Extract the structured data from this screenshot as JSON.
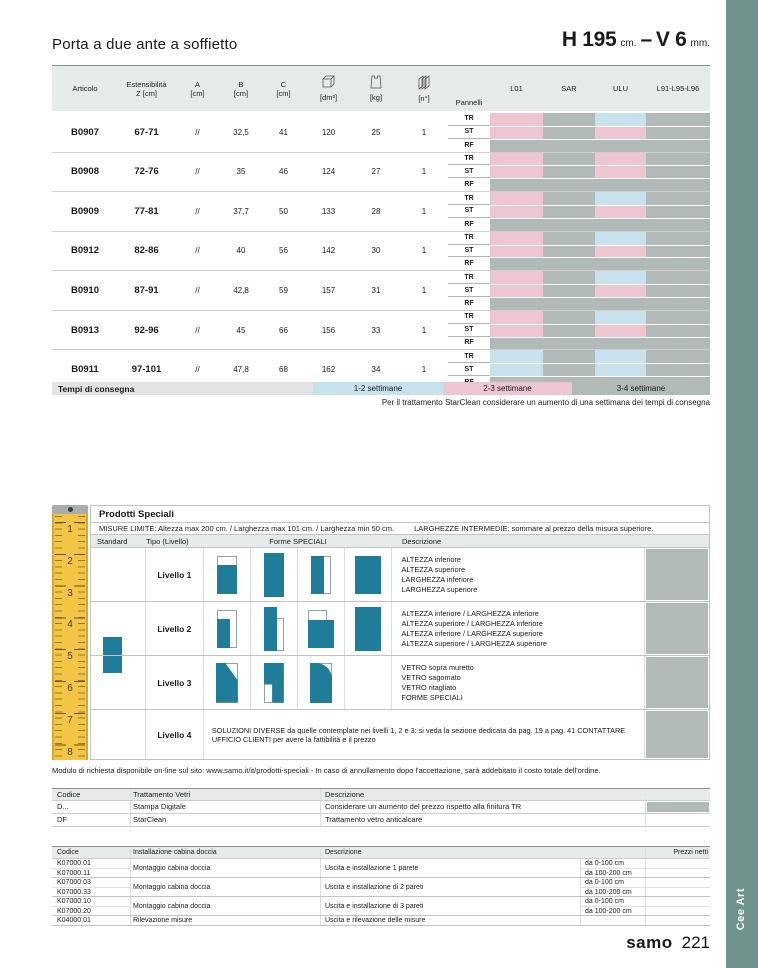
{
  "header": {
    "title": "Porta a due ante a soffietto",
    "spec": {
      "h": "H 195",
      "h_unit": "cm.",
      "dash": "–",
      "v": "V 6",
      "v_unit": "mm."
    }
  },
  "colors": {
    "pink": "#eec6d1",
    "blue": "#c7e2ec",
    "gray": "#b1b9b9",
    "teal": "#1f7d99",
    "accent_bar": "#6f928d"
  },
  "main_table": {
    "header": {
      "articolo": "Articolo",
      "estensibilita": [
        "Estensibilità",
        "Z [cm]"
      ],
      "a": [
        "A",
        "[cm]"
      ],
      "b": [
        "B",
        "[cm]"
      ],
      "c": [
        "C",
        "[cm]"
      ],
      "volume": "[dm³]",
      "weight": "[kg]",
      "count": "[n°]",
      "pannelli": "Pannelli",
      "panel_cols": [
        "L01",
        "SAR",
        "ULU",
        "L91-L95-L96"
      ]
    },
    "finishes": [
      "TR",
      "ST",
      "RF"
    ],
    "groups": [
      {
        "articolo": "B0907",
        "estensibilita": "67-71",
        "a": "//",
        "b": "32,5",
        "c": "41",
        "volume": "120",
        "weight": "25",
        "count": "1",
        "cells": {
          "TR": [
            "pink",
            "gray",
            "blue",
            "gray"
          ],
          "ST": [
            "pink",
            "gray",
            "pink",
            "gray"
          ],
          "RF": [
            "gray",
            "gray",
            "gray",
            "gray"
          ]
        }
      },
      {
        "articolo": "B0908",
        "estensibilita": "72-76",
        "a": "//",
        "b": "35",
        "c": "46",
        "volume": "124",
        "weight": "27",
        "count": "1",
        "cells": {
          "TR": [
            "pink",
            "gray",
            "pink",
            "gray"
          ],
          "ST": [
            "pink",
            "gray",
            "pink",
            "gray"
          ],
          "RF": [
            "gray",
            "gray",
            "gray",
            "gray"
          ]
        }
      },
      {
        "articolo": "B0909",
        "estensibilita": "77-81",
        "a": "//",
        "b": "37,7",
        "c": "50",
        "volume": "133",
        "weight": "28",
        "count": "1",
        "cells": {
          "TR": [
            "pink",
            "gray",
            "blue",
            "gray"
          ],
          "ST": [
            "pink",
            "gray",
            "pink",
            "gray"
          ],
          "RF": [
            "gray",
            "gray",
            "gray",
            "gray"
          ]
        }
      },
      {
        "articolo": "B0912",
        "estensibilita": "82-86",
        "a": "//",
        "b": "40",
        "c": "56",
        "volume": "142",
        "weight": "30",
        "count": "1",
        "cells": {
          "TR": [
            "pink",
            "gray",
            "blue",
            "gray"
          ],
          "ST": [
            "pink",
            "gray",
            "pink",
            "gray"
          ],
          "RF": [
            "gray",
            "gray",
            "gray",
            "gray"
          ]
        }
      },
      {
        "articolo": "B0910",
        "estensibilita": "87-91",
        "a": "//",
        "b": "42,8",
        "c": "59",
        "volume": "157",
        "weight": "31",
        "count": "1",
        "cells": {
          "TR": [
            "pink",
            "gray",
            "blue",
            "gray"
          ],
          "ST": [
            "pink",
            "gray",
            "pink",
            "gray"
          ],
          "RF": [
            "gray",
            "gray",
            "gray",
            "gray"
          ]
        }
      },
      {
        "articolo": "B0913",
        "estensibilita": "92-96",
        "a": "//",
        "b": "45",
        "c": "66",
        "volume": "156",
        "weight": "33",
        "count": "1",
        "cells": {
          "TR": [
            "pink",
            "gray",
            "blue",
            "gray"
          ],
          "ST": [
            "pink",
            "gray",
            "pink",
            "gray"
          ],
          "RF": [
            "gray",
            "gray",
            "gray",
            "gray"
          ]
        }
      },
      {
        "articolo": "B0911",
        "estensibilita": "97-101",
        "a": "//",
        "b": "47,8",
        "c": "68",
        "volume": "162",
        "weight": "34",
        "count": "1",
        "cells": {
          "TR": [
            "blue",
            "gray",
            "blue",
            "gray"
          ],
          "ST": [
            "blue",
            "gray",
            "blue",
            "gray"
          ],
          "RF": [
            "gray",
            "gray",
            "gray",
            "gray"
          ]
        }
      }
    ]
  },
  "delivery": {
    "label": "Tempi di consegna",
    "segments": [
      {
        "label": "1-2 settimane",
        "color_key": "blue"
      },
      {
        "label": "2-3 settimane",
        "color_key": "pink"
      },
      {
        "label": "3-4 settimane",
        "color_key": "gray"
      }
    ],
    "note": "Per il trattamento StarClean considerare un aumento di una settimana dei tempi di consegna"
  },
  "prodotti_speciali": {
    "title": "Prodotti Speciali",
    "misure_limite": "MISURE LIMITE: Altezza max 200 cm. / Larghezza max 101 cm. / Larghezza min 50 cm.",
    "larghezze_intermedie": "LARGHEZZE INTERMEDIE: sommare al prezzo della misura superiore.",
    "col_headers": {
      "standard": "Standard",
      "tipo": "Tipo (Livello)",
      "forme": "Forme SPECIALI",
      "descrizione": "Descrizione"
    },
    "ruler_numbers": [
      "1",
      "2",
      "3",
      "4",
      "5",
      "6",
      "7",
      "8"
    ],
    "livelli": [
      {
        "label": "Livello 1",
        "shapes": [
          "altezza-inferiore",
          "altezza-superiore",
          "larghezza-inferiore",
          "larghezza-superiore"
        ],
        "desc_lines": [
          "ALTEZZA inferiore",
          "ALTEZZA superiore",
          "LARGHEZZA inferiore",
          "LARGHEZZA superiore"
        ]
      },
      {
        "label": "Livello 2",
        "shapes": [
          "alt-inf-larg-inf",
          "alt-sup-larg-inf",
          "alt-inf-larg-sup",
          "alt-sup-larg-sup"
        ],
        "desc_lines": [
          "ALTEZZA inferiore / LARGHEZZA inferiore",
          "ALTEZZA superiore / LARGHEZZA inferiore",
          "ALTEZZA inferiore / LARGHEZZA superiore",
          "ALTEZZA superiore / LARGHEZZA superiore"
        ]
      },
      {
        "label": "Livello 3",
        "shapes": [
          "vetro-diagonale",
          "vetro-ritagliato",
          "vetro-arrotondato",
          ""
        ],
        "desc_lines": [
          "VETRO sopra muretto",
          "VETRO sagomato",
          "VETRO ritagliato",
          "FORME SPECIALI"
        ]
      },
      {
        "label": "Livello 4",
        "wide_text": "SOLUZIONI DIVERSE da quelle contemplate nei livelli 1, 2 e 3: si veda la sezione dedicata da pag. 19 a pag. 41 CONTATTARE UFFICIO CLIENTI per avere la fattibilità e il prezzo"
      }
    ],
    "modulo_note": "Modulo di richiesta disponibile on-line sul sito: www.samo.it/it/prodotti-speciali - In caso di annullamento dopo l'accettazione, sarà addebitato il costo totale dell'ordine."
  },
  "vetri_table": {
    "headers": [
      "Codice",
      "Trattamento Vetri",
      "Descrizione"
    ],
    "rows": [
      {
        "codice": "D...",
        "trattamento": "Stampa Digitale",
        "descrizione": "Considerare un aumento del prezzo rispetto alla finitura TR",
        "price_gray": true
      },
      {
        "codice": "DF",
        "trattamento": "StarClean",
        "descrizione": "Trattamento vetro anticalcare",
        "price_gray": false
      }
    ]
  },
  "install_table": {
    "headers": [
      "Codice",
      "Installazione cabina doccia",
      "Descrizione",
      "Prezzi netti"
    ],
    "blocks": [
      {
        "codes": [
          "K07000.01",
          "K07000.11"
        ],
        "name": "Montaggio cabina doccia",
        "descrizione": "Uscita e installazione 1 parete",
        "ranges": [
          "da 0-100 cm",
          "da 100-200 cm"
        ]
      },
      {
        "codes": [
          "K07000.03",
          "K07000.33"
        ],
        "name": "Montaggio cabina doccia",
        "descrizione": "Uscita e installazione di 2 pareti",
        "ranges": [
          "da 0-100 cm",
          "da 100-200 cm"
        ]
      },
      {
        "codes": [
          "K07000.10",
          "K07000.20"
        ],
        "name": "Montaggio cabina doccia",
        "descrizione": "Uscita e installazione di 3 pareti",
        "ranges": [
          "da 0-100 cm",
          "da 100-200 cm"
        ]
      },
      {
        "codes": [
          "K04000.01"
        ],
        "name": "Rilevazione misure",
        "descrizione": "Uscita e rilevazione delle misure",
        "ranges": [
          ""
        ]
      }
    ]
  },
  "footer": {
    "brand": "samo",
    "page_number": "221",
    "side_tab": "Cee Art"
  }
}
